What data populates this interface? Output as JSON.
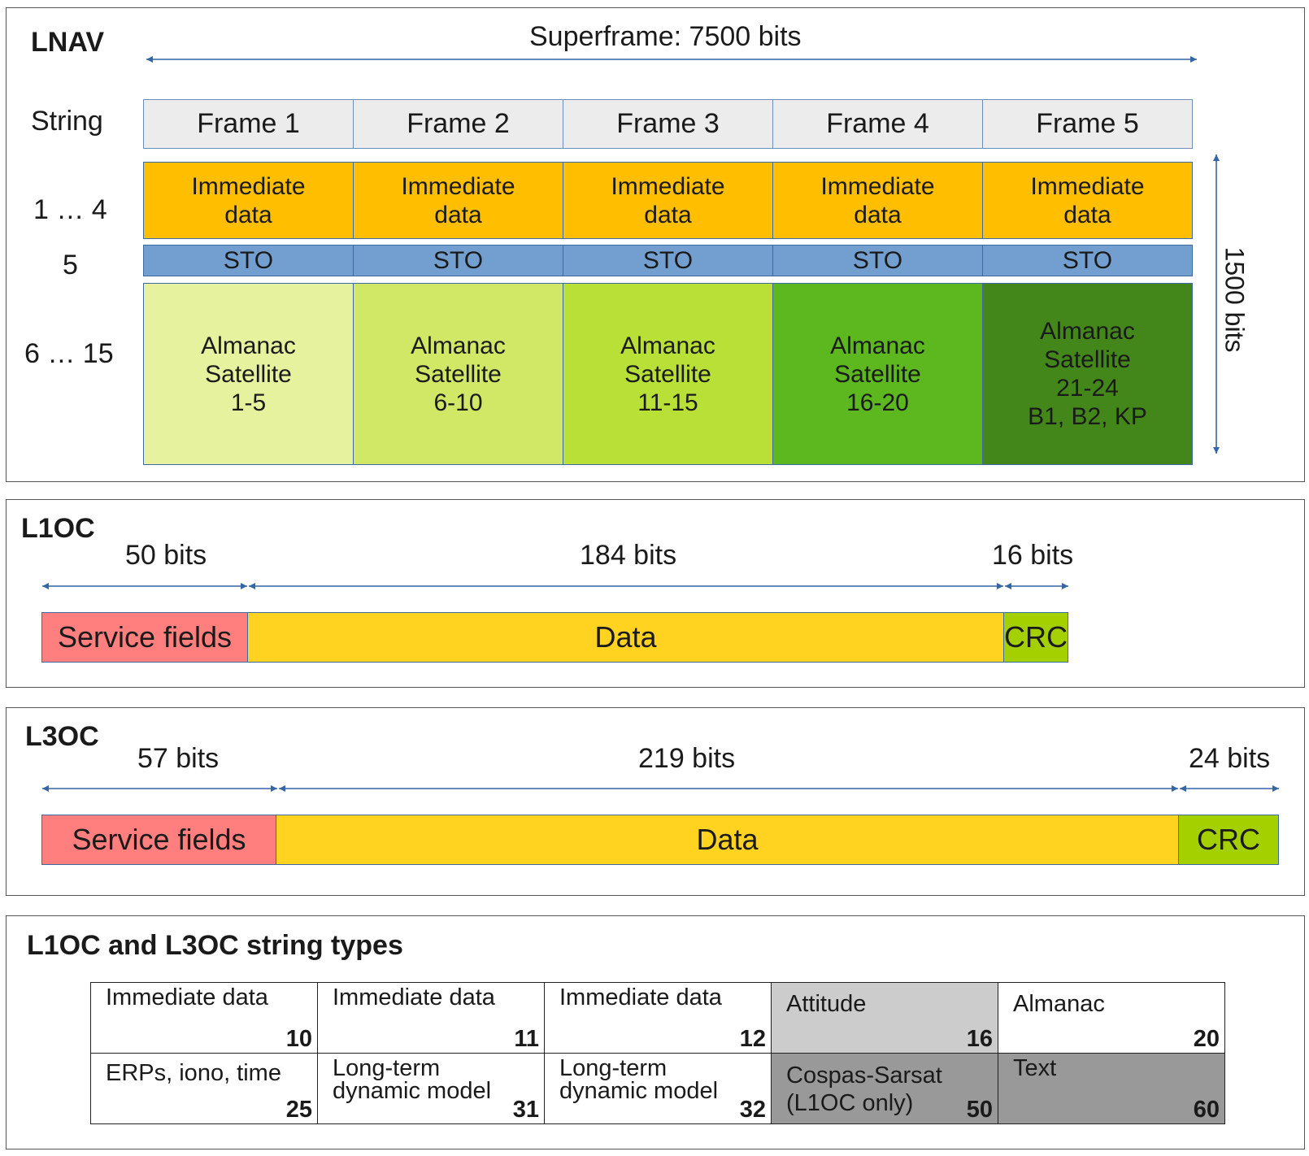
{
  "lnav": {
    "title": "LNAV",
    "superframe": "Superframe: 7500 bits",
    "string_header": "String",
    "row_labels": [
      "1 … 4",
      "5",
      "6 … 15"
    ],
    "frames": [
      "Frame 1",
      "Frame 2",
      "Frame 3",
      "Frame 4",
      "Frame 5"
    ],
    "immediate": [
      "Immediate\ndata",
      "Immediate\ndata",
      "Immediate\ndata",
      "Immediate\ndata",
      "Immediate\ndata"
    ],
    "sto": [
      "STO",
      "STO",
      "STO",
      "STO",
      "STO"
    ],
    "almanac": [
      "Almanac\nSatellite\n1-5",
      "Almanac\nSatellite\n6-10",
      "Almanac\nSatellite\n11-15",
      "Almanac\nSatellite\n16-20",
      "Almanac\nSatellite\n21-24\nB1, B2, KP"
    ],
    "almanac_colors": [
      "#e6f29e",
      "#d1e866",
      "#b8e037",
      "#5cb81e",
      "#43871b"
    ],
    "frame_bits": "1500 bits"
  },
  "l1oc": {
    "title": "L1OC",
    "sizes": [
      "50 bits",
      "184 bits",
      "16 bits"
    ],
    "segments": [
      "Service fields",
      "Data",
      "CRC"
    ]
  },
  "l3oc": {
    "title": "L3OC",
    "sizes": [
      "57 bits",
      "219 bits",
      "24 bits"
    ],
    "segments": [
      "Service fields",
      "Data",
      "CRC"
    ]
  },
  "colors": {
    "service": "#ff7f7f",
    "data": "#ffd320",
    "crc": "#a5d000",
    "arrow": "#3465a4"
  },
  "types": {
    "title": "L1OC and L3OC string types",
    "rows": [
      [
        {
          "name": "Immediate data",
          "num": "10",
          "bg": "#ffffff"
        },
        {
          "name": "Immediate data",
          "num": "11",
          "bg": "#ffffff"
        },
        {
          "name": "Immediate data",
          "num": "12",
          "bg": "#ffffff"
        },
        {
          "name": "Attitude",
          "num": "16",
          "bg": "#cccccc"
        },
        {
          "name": "Almanac",
          "num": "20",
          "bg": "#ffffff"
        }
      ],
      [
        {
          "name": "ERPs, iono, time",
          "num": "25",
          "bg": "#ffffff"
        },
        {
          "name": "Long-term\ndynamic model",
          "num": "31",
          "bg": "#ffffff"
        },
        {
          "name": "Long-term\ndynamic model",
          "num": "32",
          "bg": "#ffffff"
        },
        {
          "name": "Cospas-Sarsat\n(L1OC only)",
          "num": "50",
          "bg": "#999999"
        },
        {
          "name": "Text",
          "num": "60",
          "bg": "#999999"
        }
      ]
    ]
  }
}
